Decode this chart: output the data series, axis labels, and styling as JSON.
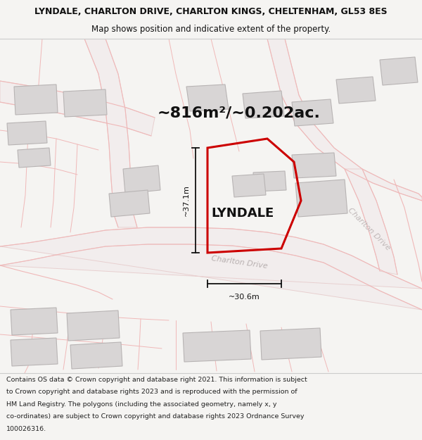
{
  "title_line1": "LYNDALE, CHARLTON DRIVE, CHARLTON KINGS, CHELTENHAM, GL53 8ES",
  "title_line2": "Map shows position and indicative extent of the property.",
  "area_label": "~816m²/~0.202ac.",
  "property_label": "LYNDALE",
  "dim_height": "~37.1m",
  "dim_width": "~30.6m",
  "road_label_bottom": "Charlton Drive",
  "road_label_right": "Charlton Drive",
  "footer_lines": [
    "Contains OS data © Crown copyright and database right 2021. This information is subject",
    "to Crown copyright and database rights 2023 and is reproduced with the permission of",
    "HM Land Registry. The polygons (including the associated geometry, namely x, y",
    "co-ordinates) are subject to Crown copyright and database rights 2023 Ordnance Survey",
    "100026316."
  ],
  "map_bg": "#ffffff",
  "page_bg": "#f5f4f2",
  "road_outline_color": "#f0b8b8",
  "road_fill_color": "#f5f0f0",
  "building_fill": "#d8d5d5",
  "building_stroke": "#b8b4b4",
  "plot_stroke": "#cc0000",
  "dim_color": "#111111",
  "road_label_color": "#aaaaaa",
  "title_color": "#111111",
  "footer_color": "#222222",
  "area_fontsize": 16,
  "property_fontsize": 13,
  "dim_fontsize": 8,
  "road_label_fontsize": 8,
  "title_fontsize1": 9,
  "title_fontsize2": 8.5,
  "footer_fontsize": 6.8
}
